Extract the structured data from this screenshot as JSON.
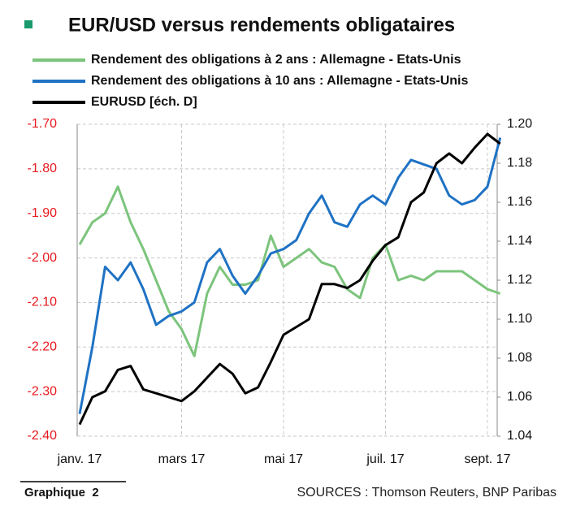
{
  "chart_data": {
    "type": "line",
    "title": "EUR/USD versus rendements obligataires",
    "categories": [
      "janv. 17",
      null,
      null,
      null,
      null,
      null,
      null,
      null,
      "mars 17",
      null,
      null,
      null,
      null,
      null,
      null,
      null,
      "mai 17",
      null,
      null,
      null,
      null,
      null,
      null,
      null,
      "juil. 17",
      null,
      null,
      null,
      null,
      null,
      null,
      null,
      "sept. 17",
      null
    ],
    "series": [
      {
        "name": "Rendement des obligations à 2 ans : Allemagne - Etats-Unis",
        "color": "#7cc47c",
        "values": [
          -1.97,
          -1.92,
          -1.9,
          -1.84,
          -1.92,
          -1.98,
          -2.05,
          -2.12,
          -2.16,
          -2.22,
          -2.08,
          -2.02,
          -2.06,
          -2.06,
          -2.05,
          -1.95,
          -2.02,
          -2.0,
          -1.98,
          -2.01,
          -2.02,
          -2.07,
          -2.09,
          -2.0,
          -1.97,
          -2.05,
          -2.04,
          -2.05,
          -2.03,
          -2.03,
          -2.03,
          -2.05,
          -2.07,
          -2.08
        ]
      },
      {
        "name": "Rendement des obligations à 10 ans : Allemagne - Etats-Unis",
        "color": "#1f72c4",
        "values": [
          -2.35,
          -2.2,
          -2.02,
          -2.05,
          -2.01,
          -2.07,
          -2.15,
          -2.13,
          -2.12,
          -2.1,
          -2.01,
          -1.98,
          -2.04,
          -2.08,
          -2.04,
          -1.99,
          -1.98,
          -1.96,
          -1.9,
          -1.86,
          -1.92,
          -1.93,
          -1.88,
          -1.86,
          -1.88,
          -1.82,
          -1.78,
          -1.79,
          -1.8,
          -1.86,
          -1.88,
          -1.87,
          -1.84,
          -1.73
        ]
      },
      {
        "name": "EURUSD [éch. D]",
        "color": "#000000",
        "axis": "y2",
        "values": [
          1.046,
          1.06,
          1.063,
          1.074,
          1.076,
          1.064,
          1.062,
          1.06,
          1.058,
          1.063,
          1.07,
          1.077,
          1.072,
          1.062,
          1.065,
          1.078,
          1.092,
          1.096,
          1.1,
          1.118,
          1.118,
          1.116,
          1.12,
          1.13,
          1.138,
          1.142,
          1.16,
          1.165,
          1.18,
          1.185,
          1.18,
          1.188,
          1.195,
          1.19
        ]
      }
    ],
    "ylim": [
      -2.4,
      -1.7
    ],
    "yticks": [
      {
        "value": -1.7,
        "label": "-1.70"
      },
      {
        "value": -1.8,
        "label": "-1.80"
      },
      {
        "value": -1.9,
        "label": "-1.90"
      },
      {
        "value": -2.0,
        "label": "-2.00"
      },
      {
        "value": -2.1,
        "label": "-2.10"
      },
      {
        "value": -2.2,
        "label": "-2.20"
      },
      {
        "value": -2.3,
        "label": "-2.30"
      },
      {
        "value": -2.4,
        "label": "-2.40"
      }
    ],
    "y2lim": [
      1.04,
      1.2
    ],
    "y2ticks": [
      {
        "value": 1.2,
        "label": "1.20"
      },
      {
        "value": 1.18,
        "label": "1.18"
      },
      {
        "value": 1.16,
        "label": "1.16"
      },
      {
        "value": 1.14,
        "label": "1.14"
      },
      {
        "value": 1.12,
        "label": "1.12"
      },
      {
        "value": 1.1,
        "label": "1.10"
      },
      {
        "value": 1.08,
        "label": "1.08"
      },
      {
        "value": 1.06,
        "label": "1.06"
      },
      {
        "value": 1.04,
        "label": "1.04"
      }
    ],
    "yticks_color": "#e8191e",
    "grid": true,
    "footer": "Graphique  2",
    "source": "SOURCES : Thomson Reuters, BNP Paribas"
  }
}
